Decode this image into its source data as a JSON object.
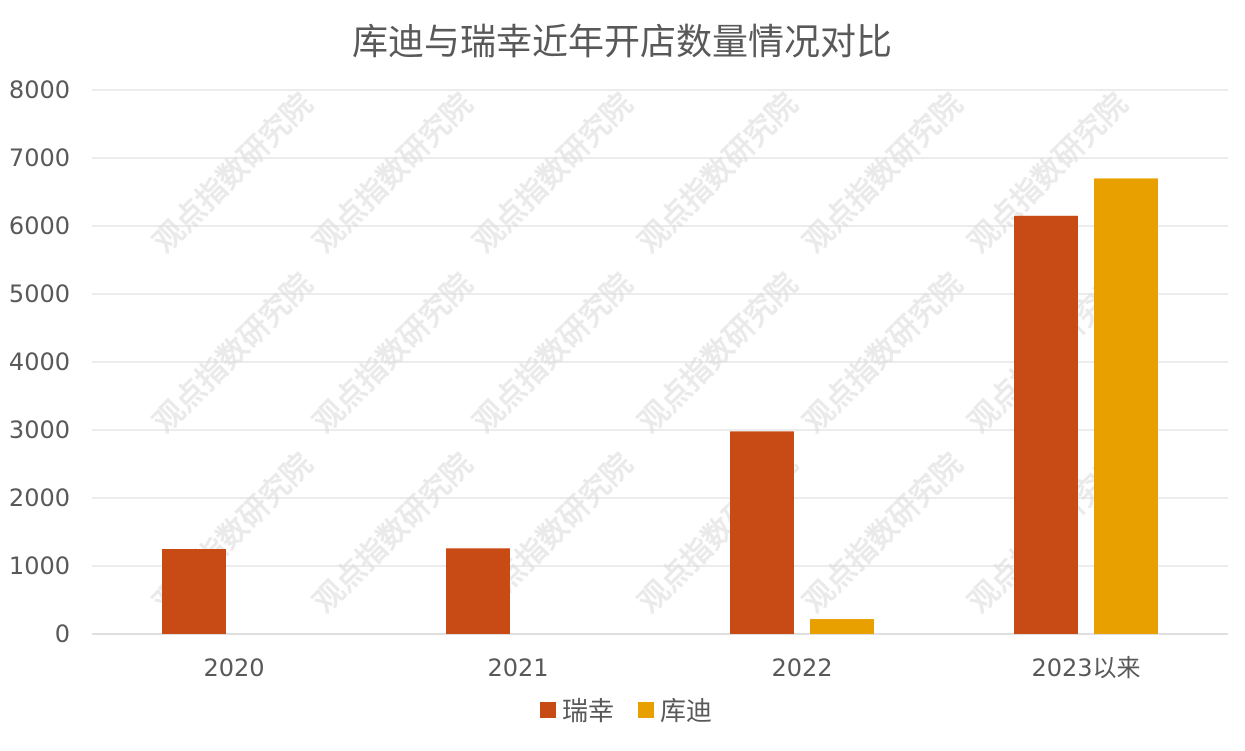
{
  "chart_data": {
    "type": "bar",
    "title": "库迪与瑞幸近年开店数量情况对比",
    "xlabel": "",
    "ylabel": "",
    "categories": [
      "2020",
      "2021",
      "2022",
      "2023以来"
    ],
    "series": [
      {
        "name": "瑞幸",
        "values": [
          1250,
          1260,
          2980,
          6150
        ],
        "color": "#C84B16"
      },
      {
        "name": "库迪",
        "values": [
          0,
          0,
          220,
          6700
        ],
        "color": "#E8A000"
      }
    ],
    "ylim": [
      0,
      8000
    ],
    "yticks": [
      0,
      1000,
      2000,
      3000,
      4000,
      5000,
      6000,
      7000,
      8000
    ],
    "grid": true,
    "legend_position": "bottom"
  },
  "watermark": {
    "text": "观点指数研究院"
  }
}
